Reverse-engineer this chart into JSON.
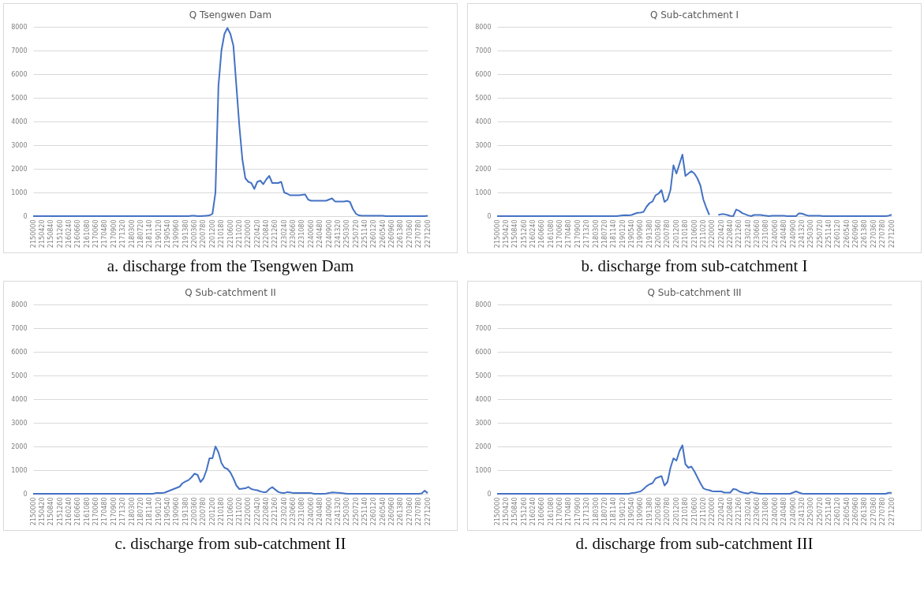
{
  "chart_data": [
    {
      "type": "line",
      "title": "Q Tsengwen Dam",
      "annotations": [
        "a. discharge from the Tsengwen Dam"
      ],
      "color": "#4472c4",
      "ylim": [
        0,
        8000
      ],
      "yticks": [
        0,
        1000,
        2000,
        3000,
        4000,
        5000,
        6000,
        7000,
        8000
      ],
      "grid": "y",
      "categories": [
        "2150000",
        null,
        null,
        "2150420",
        null,
        null,
        "2150840",
        null,
        null,
        "2151260",
        null,
        null,
        "2160240",
        null,
        null,
        "2160660",
        null,
        null,
        "2161080",
        null,
        null,
        "2170060",
        null,
        null,
        "2170480",
        null,
        null,
        "2170900",
        null,
        null,
        "2171320",
        null,
        null,
        "2180300",
        null,
        null,
        "2180720",
        null,
        null,
        "2181140",
        null,
        null,
        "2190120",
        null,
        null,
        "2190540",
        null,
        null,
        "2190960",
        null,
        null,
        "2191380",
        null,
        null,
        "2200360",
        null,
        null,
        "2200780",
        null,
        null,
        "2201200",
        null,
        null,
        "2210180",
        null,
        null,
        "2210600",
        null,
        null,
        "2211020",
        null,
        null,
        "2220000",
        null,
        null,
        "2220420",
        null,
        null,
        "2220840",
        null,
        null,
        "2221260",
        null,
        null,
        "2230240",
        null,
        null,
        "2230660",
        null,
        null,
        "2231080",
        null,
        null,
        "2240060",
        null,
        null,
        "2240480",
        null,
        null,
        "2240900",
        null,
        null,
        "2241320",
        null,
        null,
        "2250300",
        null,
        null,
        "2250720",
        null,
        null,
        "2251140",
        null,
        null,
        "2260120",
        null,
        null,
        "2260540",
        null,
        null,
        "2260960",
        null,
        null,
        "2261380",
        null,
        null,
        "2270360",
        null,
        null,
        "2270780",
        null,
        null,
        "2271200"
      ],
      "values": [
        0,
        0,
        0,
        0,
        0,
        0,
        0,
        0,
        0,
        0,
        0,
        0,
        0,
        0,
        0,
        0,
        0,
        0,
        0,
        0,
        0,
        0,
        0,
        0,
        0,
        0,
        0,
        0,
        0,
        0,
        0,
        0,
        0,
        0,
        0,
        0,
        0,
        0,
        0,
        0,
        0,
        0,
        0,
        0,
        0,
        0,
        0,
        0,
        0,
        0,
        0,
        0,
        0,
        20,
        20,
        0,
        0,
        10,
        20,
        30,
        100,
        1000,
        5500,
        7000,
        7700,
        7950,
        7700,
        7200,
        5500,
        3800,
        2400,
        1600,
        1450,
        1400,
        1150,
        1450,
        1500,
        1350,
        1550,
        1700,
        1400,
        1400,
        1400,
        1450,
        1000,
        950,
        880,
        880,
        880,
        880,
        900,
        920,
        700,
        650,
        650,
        650,
        650,
        650,
        650,
        700,
        750,
        620,
        620,
        620,
        620,
        640,
        600,
        300,
        100,
        30,
        20,
        20,
        20,
        20,
        20,
        20,
        20,
        20,
        0,
        0,
        0,
        0,
        0,
        0,
        0,
        0,
        0,
        0,
        0,
        0,
        0,
        0,
        20
      ]
    },
    {
      "type": "line",
      "title": "Q Sub-catchment I",
      "annotations": [
        "b. discharge from sub-catchment I"
      ],
      "color": "#4472c4",
      "ylim": [
        0,
        8000
      ],
      "yticks": [
        0,
        1000,
        2000,
        3000,
        4000,
        5000,
        6000,
        7000,
        8000
      ],
      "grid": "y",
      "categories": [
        "2150000",
        null,
        null,
        "2150420",
        null,
        null,
        "2150840",
        null,
        null,
        "2151260",
        null,
        null,
        "2160240",
        null,
        null,
        "2160660",
        null,
        null,
        "2161080",
        null,
        null,
        "2170060",
        null,
        null,
        "2170480",
        null,
        null,
        "2170900",
        null,
        null,
        "2171320",
        null,
        null,
        "2180300",
        null,
        null,
        "2180720",
        null,
        null,
        "2181140",
        null,
        null,
        "2190120",
        null,
        null,
        "2190540",
        null,
        null,
        "2190960",
        null,
        null,
        "2191380",
        null,
        null,
        "2200360",
        null,
        null,
        "2200780",
        null,
        null,
        "2201200",
        null,
        null,
        "2210180",
        null,
        null,
        "2210600",
        null,
        null,
        "2211020",
        null,
        null,
        "2220000",
        null,
        null,
        "2220420",
        null,
        null,
        "2220840",
        null,
        null,
        "2221260",
        null,
        null,
        "2230240",
        null,
        null,
        "2230660",
        null,
        null,
        "2231080",
        null,
        null,
        "2240060",
        null,
        null,
        "2240480",
        null,
        null,
        "2240900",
        null,
        null,
        "2241320",
        null,
        null,
        "2250300",
        null,
        null,
        "2250720",
        null,
        null,
        "2251140",
        null,
        null,
        "2260120",
        null,
        null,
        "2260540",
        null,
        null,
        "2260960",
        null,
        null,
        "2261380",
        null,
        null,
        "2270360",
        null,
        null,
        "2270780",
        null,
        null,
        "2271200"
      ],
      "values": [
        0,
        0,
        0,
        0,
        0,
        0,
        0,
        0,
        0,
        0,
        0,
        0,
        0,
        0,
        0,
        0,
        0,
        0,
        0,
        0,
        0,
        0,
        0,
        0,
        0,
        0,
        0,
        0,
        0,
        0,
        0,
        0,
        0,
        0,
        0,
        0,
        0,
        0,
        0,
        0,
        0,
        20,
        30,
        40,
        30,
        50,
        100,
        140,
        150,
        180,
        400,
        550,
        620,
        880,
        950,
        1100,
        600,
        700,
        1100,
        2150,
        1800,
        2200,
        2600,
        1700,
        1800,
        1900,
        1800,
        1600,
        1300,
        700,
        350,
        50,
        null,
        null,
        50,
        80,
        80,
        50,
        10,
        0,
        280,
        220,
        130,
        80,
        30,
        0,
        50,
        50,
        50,
        30,
        20,
        0,
        20,
        20,
        20,
        20,
        20,
        0,
        0,
        0,
        0,
        120,
        110,
        60,
        20,
        20,
        20,
        20,
        20,
        0,
        0,
        0,
        0,
        0,
        0,
        0,
        0,
        0,
        0,
        0,
        0,
        0,
        0,
        0,
        0,
        0,
        0,
        0,
        0,
        0,
        0,
        20,
        60
      ]
    },
    {
      "type": "line",
      "title": "Q Sub-catchment II",
      "annotations": [
        "c. discharge from sub-catchment II"
      ],
      "color": "#4472c4",
      "ylim": [
        0,
        8000
      ],
      "yticks": [
        0,
        1000,
        2000,
        3000,
        4000,
        5000,
        6000,
        7000,
        8000
      ],
      "grid": "y",
      "categories": [
        "2150000",
        null,
        null,
        "2150420",
        null,
        null,
        "2150840",
        null,
        null,
        "2151260",
        null,
        null,
        "2160240",
        null,
        null,
        "2160660",
        null,
        null,
        "2161080",
        null,
        null,
        "2170060",
        null,
        null,
        "2170480",
        null,
        null,
        "2170900",
        null,
        null,
        "2171320",
        null,
        null,
        "2180300",
        null,
        null,
        "2180720",
        null,
        null,
        "2181140",
        null,
        null,
        "2190120",
        null,
        null,
        "2190540",
        null,
        null,
        "2190960",
        null,
        null,
        "2191380",
        null,
        null,
        "2200360",
        null,
        null,
        "2200780",
        null,
        null,
        "2201200",
        null,
        null,
        "2210180",
        null,
        null,
        "2210600",
        null,
        null,
        "2211020",
        null,
        null,
        "2220000",
        null,
        null,
        "2220420",
        null,
        null,
        "2220840",
        null,
        null,
        "2221260",
        null,
        null,
        "2230240",
        null,
        null,
        "2230660",
        null,
        null,
        "2231080",
        null,
        null,
        "2240060",
        null,
        null,
        "2240480",
        null,
        null,
        "2240900",
        null,
        null,
        "2241320",
        null,
        null,
        "2250300",
        null,
        null,
        "2250720",
        null,
        null,
        "2251140",
        null,
        null,
        "2260120",
        null,
        null,
        "2260540",
        null,
        null,
        "2260960",
        null,
        null,
        "2261380",
        null,
        null,
        "2270360",
        null,
        null,
        "2270780",
        null,
        null,
        "2271200"
      ],
      "values": [
        0,
        0,
        0,
        0,
        0,
        0,
        0,
        0,
        0,
        0,
        0,
        0,
        0,
        0,
        0,
        0,
        0,
        0,
        0,
        0,
        0,
        0,
        0,
        0,
        0,
        0,
        0,
        0,
        0,
        0,
        0,
        0,
        0,
        0,
        0,
        0,
        0,
        0,
        0,
        0,
        0,
        30,
        30,
        30,
        50,
        100,
        150,
        200,
        250,
        300,
        450,
        520,
        580,
        700,
        850,
        800,
        500,
        650,
        1000,
        1500,
        1500,
        2000,
        1750,
        1300,
        1100,
        1050,
        900,
        650,
        350,
        200,
        220,
        230,
        290,
        200,
        170,
        150,
        100,
        70,
        70,
        200,
        280,
        180,
        80,
        40,
        30,
        70,
        60,
        30,
        30,
        30,
        30,
        30,
        30,
        30,
        0,
        0,
        0,
        0,
        10,
        30,
        60,
        50,
        40,
        30,
        20,
        0,
        0,
        0,
        0,
        0,
        0,
        0,
        0,
        0,
        0,
        0,
        0,
        0,
        0,
        0,
        0,
        0,
        0,
        0,
        0,
        0,
        0,
        0,
        0,
        0,
        20,
        130,
        30
      ]
    },
    {
      "type": "line",
      "title": "Q Sub-catchment III",
      "annotations": [
        "d. discharge from sub-catchment III"
      ],
      "color": "#4472c4",
      "ylim": [
        0,
        8000
      ],
      "yticks": [
        0,
        1000,
        2000,
        3000,
        4000,
        5000,
        6000,
        7000,
        8000
      ],
      "grid": "y",
      "categories": [
        "2150000",
        null,
        null,
        "2150420",
        null,
        null,
        "2150840",
        null,
        null,
        "2151260",
        null,
        null,
        "2160240",
        null,
        null,
        "2160660",
        null,
        null,
        "2161080",
        null,
        null,
        "2170060",
        null,
        null,
        "2170480",
        null,
        null,
        "2170900",
        null,
        null,
        "2171320",
        null,
        null,
        "2180300",
        null,
        null,
        "2180720",
        null,
        null,
        "2181140",
        null,
        null,
        "2190120",
        null,
        null,
        "2190540",
        null,
        null,
        "2190960",
        null,
        null,
        "2191380",
        null,
        null,
        "2200360",
        null,
        null,
        "2200780",
        null,
        null,
        "2201200",
        null,
        null,
        "2210180",
        null,
        null,
        "2210600",
        null,
        null,
        "2211020",
        null,
        null,
        "2220000",
        null,
        null,
        "2220420",
        null,
        null,
        "2220840",
        null,
        null,
        "2221260",
        null,
        null,
        "2230240",
        null,
        null,
        "2230660",
        null,
        null,
        "2231080",
        null,
        null,
        "2240060",
        null,
        null,
        "2240480",
        null,
        null,
        "2240900",
        null,
        null,
        "2241320",
        null,
        null,
        "2250300",
        null,
        null,
        "2250720",
        null,
        null,
        "2251140",
        null,
        null,
        "2260120",
        null,
        null,
        "2260540",
        null,
        null,
        "2260960",
        null,
        null,
        "2261380",
        null,
        null,
        "2270360",
        null,
        null,
        "2270780",
        null,
        null,
        "2271200"
      ],
      "values": [
        0,
        0,
        0,
        0,
        0,
        0,
        0,
        0,
        0,
        0,
        0,
        0,
        0,
        0,
        0,
        0,
        0,
        0,
        0,
        0,
        0,
        0,
        0,
        0,
        0,
        0,
        0,
        0,
        0,
        0,
        0,
        0,
        0,
        0,
        0,
        0,
        0,
        0,
        0,
        0,
        0,
        0,
        0,
        0,
        0,
        30,
        40,
        70,
        100,
        200,
        320,
        400,
        450,
        650,
        700,
        750,
        350,
        500,
        1100,
        1500,
        1400,
        1800,
        2050,
        1250,
        1100,
        1150,
        950,
        700,
        450,
        230,
        180,
        150,
        110,
        100,
        100,
        100,
        50,
        50,
        50,
        200,
        180,
        100,
        60,
        30,
        10,
        70,
        40,
        20,
        0,
        0,
        0,
        0,
        0,
        0,
        0,
        0,
        0,
        0,
        0,
        50,
        100,
        50,
        10,
        0,
        0,
        0,
        0,
        0,
        0,
        0,
        0,
        0,
        0,
        0,
        0,
        0,
        0,
        0,
        0,
        0,
        0,
        0,
        0,
        0,
        0,
        0,
        0,
        0,
        0,
        0,
        0,
        40,
        40
      ]
    }
  ]
}
